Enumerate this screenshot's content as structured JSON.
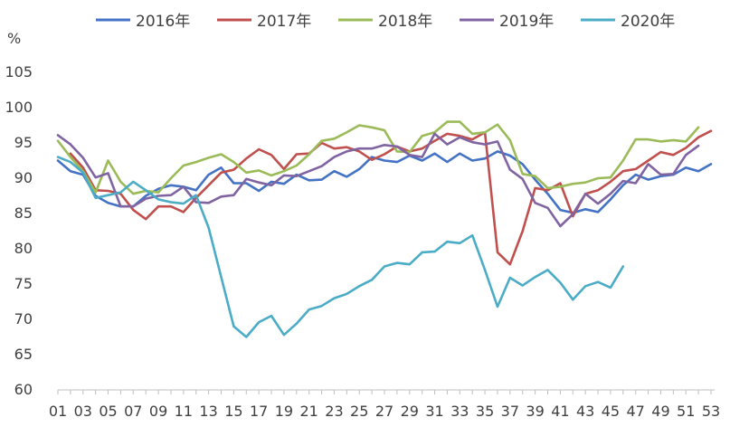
{
  "chart_data": {
    "type": "line",
    "title": "",
    "xlabel": "",
    "ylabel": "%",
    "ylim": [
      60,
      105
    ],
    "yticks": [
      60,
      65,
      70,
      75,
      80,
      85,
      90,
      95,
      100,
      105
    ],
    "xticks": [
      "01",
      "03",
      "05",
      "07",
      "09",
      "11",
      "13",
      "15",
      "17",
      "19",
      "21",
      "23",
      "25",
      "27",
      "29",
      "31",
      "33",
      "35",
      "37",
      "39",
      "41",
      "43",
      "45",
      "47",
      "49",
      "51",
      "53"
    ],
    "grid": false,
    "legend_position": "top",
    "x": [
      1,
      2,
      3,
      4,
      5,
      6,
      7,
      8,
      9,
      10,
      11,
      12,
      13,
      14,
      15,
      16,
      17,
      18,
      19,
      20,
      21,
      22,
      23,
      24,
      25,
      26,
      27,
      28,
      29,
      30,
      31,
      32,
      33,
      34,
      35,
      36,
      37,
      38,
      39,
      40,
      41,
      42,
      43,
      44,
      45,
      46,
      47,
      48,
      49,
      50,
      51,
      52,
      53
    ],
    "series": [
      {
        "name": "2016年",
        "color": "#4472C4",
        "values": [
          92.5,
          91.0,
          90.5,
          87.5,
          86.5,
          86.0,
          86.0,
          87.5,
          88.5,
          89.0,
          88.8,
          88.3,
          90.5,
          91.5,
          89.3,
          89.3,
          88.2,
          89.5,
          89.2,
          90.5,
          89.7,
          89.8,
          91.0,
          90.2,
          91.3,
          93.0,
          92.5,
          92.3,
          93.2,
          92.5,
          93.5,
          92.3,
          93.5,
          92.5,
          92.8,
          93.8,
          93.2,
          92.0,
          89.8,
          87.8,
          85.5,
          85.1,
          85.6,
          85.2,
          87.0,
          89.0,
          90.5,
          89.8,
          90.3,
          90.5,
          91.5,
          91.0,
          92.0
        ]
      },
      {
        "name": "2017年",
        "color": "#C0504D",
        "values": [
          null,
          93.5,
          91.5,
          88.3,
          88.2,
          87.8,
          85.5,
          84.2,
          86.0,
          86.0,
          85.2,
          87.2,
          89.0,
          90.8,
          91.2,
          92.8,
          94.1,
          93.3,
          91.3,
          93.4,
          93.5,
          95.0,
          94.2,
          94.4,
          93.8,
          92.6,
          93.4,
          94.5,
          93.8,
          94.2,
          95.3,
          96.3,
          96.0,
          95.5,
          96.5,
          79.5,
          77.8,
          82.5,
          88.6,
          88.3,
          89.3,
          84.6,
          87.8,
          88.3,
          89.5,
          91.0,
          91.3,
          92.5,
          93.7,
          93.3,
          94.3,
          95.8,
          96.7
        ]
      },
      {
        "name": "2018年",
        "color": "#9BBB59",
        "values": [
          95.3,
          93.0,
          91.0,
          88.0,
          92.5,
          89.5,
          87.8,
          88.2,
          88.0,
          90.0,
          91.8,
          92.3,
          92.9,
          93.4,
          92.3,
          90.8,
          91.1,
          90.4,
          91.0,
          91.8,
          93.4,
          95.3,
          95.6,
          96.5,
          97.5,
          97.2,
          96.8,
          93.8,
          93.7,
          96.0,
          96.5,
          98.0,
          98.0,
          96.3,
          96.5,
          97.6,
          95.4,
          90.6,
          90.3,
          88.6,
          88.8,
          89.2,
          89.4,
          90.0,
          90.1,
          92.5,
          95.5,
          95.5,
          95.2,
          95.4,
          95.2,
          97.2,
          null
        ]
      },
      {
        "name": "2019年",
        "color": "#8064A2",
        "values": [
          96.1,
          94.8,
          92.9,
          90.1,
          90.7,
          86.0,
          86.0,
          87.1,
          87.5,
          87.6,
          88.8,
          86.6,
          86.5,
          87.4,
          87.6,
          89.9,
          89.4,
          89.0,
          90.4,
          90.3,
          91.0,
          91.7,
          93.0,
          93.8,
          94.2,
          94.2,
          94.7,
          94.5,
          93.3,
          93.0,
          96.3,
          94.8,
          95.8,
          95.1,
          94.8,
          95.2,
          91.2,
          89.9,
          86.5,
          85.8,
          83.2,
          84.9,
          87.8,
          86.4,
          87.8,
          89.6,
          89.3,
          92.0,
          90.5,
          90.6,
          93.3,
          94.6,
          null
        ]
      },
      {
        "name": "2020年",
        "color": "#4BACC6",
        "values": [
          93.0,
          92.3,
          90.8,
          87.2,
          87.6,
          88.0,
          89.5,
          88.3,
          87.0,
          86.6,
          86.4,
          87.6,
          83.0,
          76.0,
          69.0,
          67.5,
          69.6,
          70.5,
          67.8,
          69.4,
          71.4,
          71.9,
          73.0,
          73.6,
          74.7,
          75.6,
          77.5,
          78.0,
          77.8,
          79.5,
          79.6,
          81.0,
          80.8,
          81.9,
          77.0,
          71.8,
          75.9,
          74.8,
          76.0,
          77.0,
          75.2,
          72.8,
          74.7,
          75.3,
          74.5,
          77.5,
          null,
          null,
          null,
          null,
          null,
          null,
          null
        ]
      }
    ]
  }
}
